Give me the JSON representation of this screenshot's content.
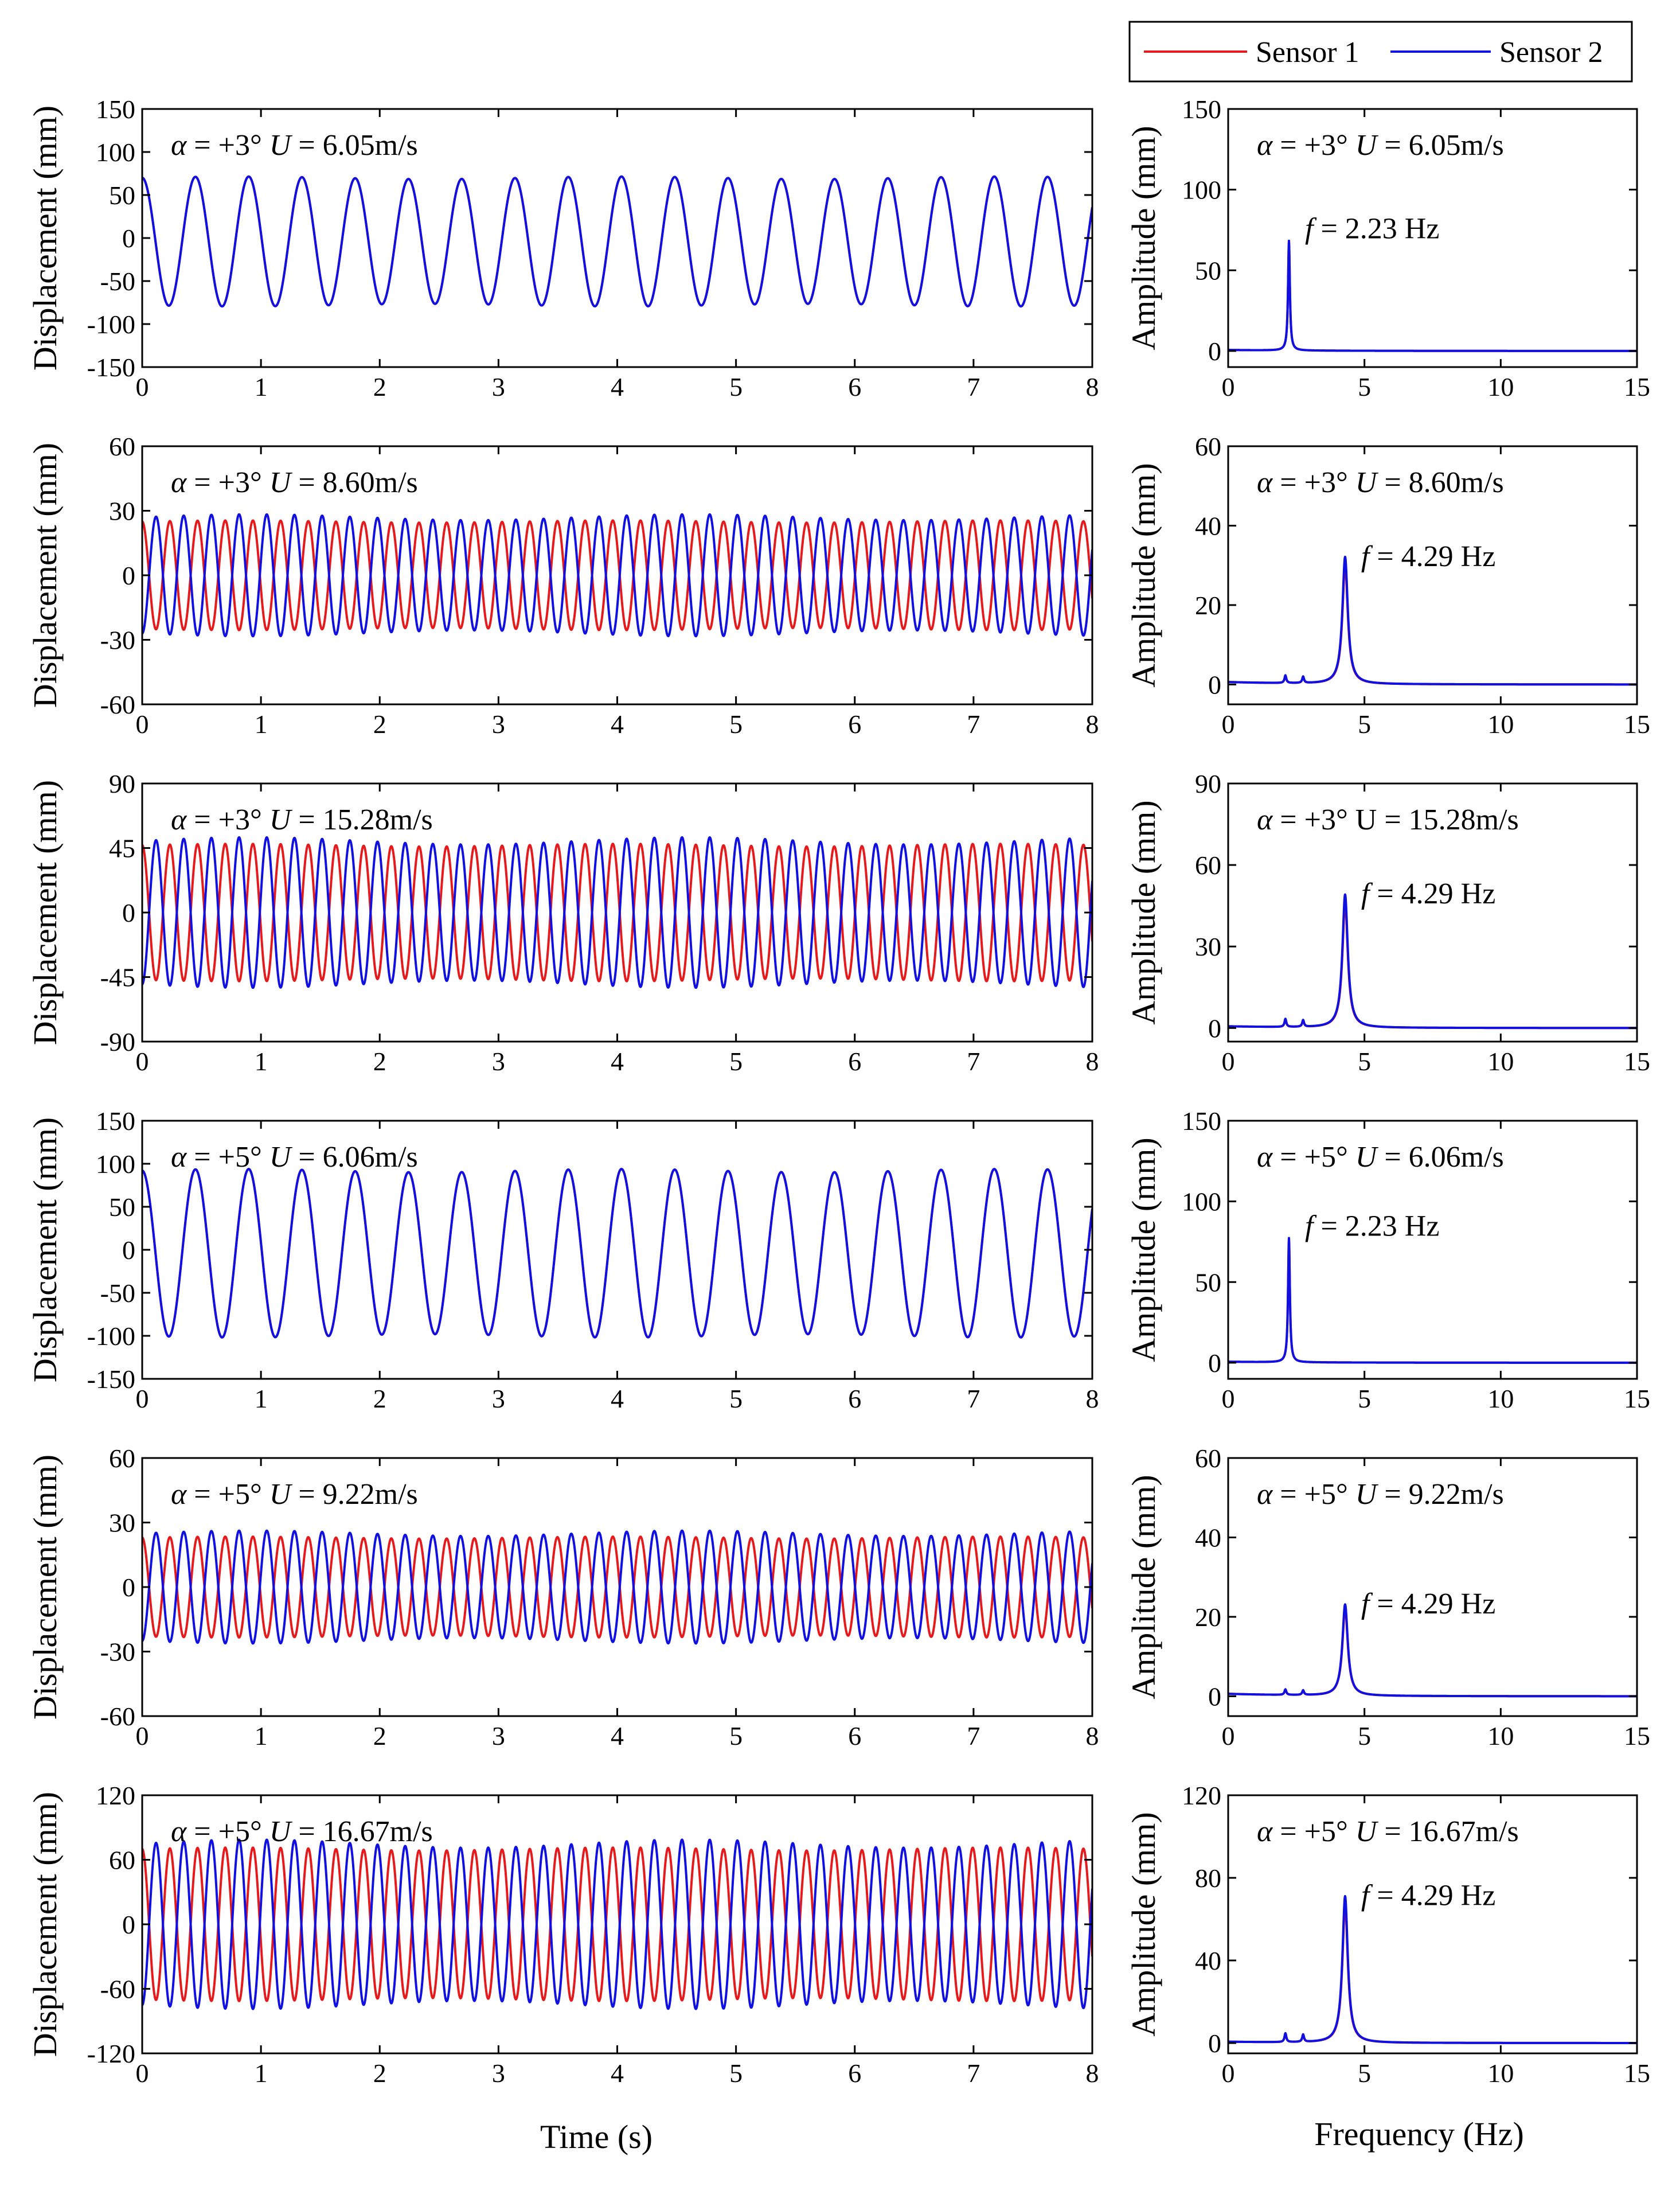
{
  "figure": {
    "time_xlabel": "Time (s)",
    "freq_xlabel": "Frequency (Hz)",
    "time_ylabel": "Displacement (mm)",
    "freq_ylabel": "Amplitude (mm)"
  },
  "legend": {
    "items": [
      {
        "label": "Sensor 1",
        "color": "#e41a1c"
      },
      {
        "label": "Sensor 2",
        "color": "#1010e0"
      }
    ]
  },
  "chart_data": [
    {
      "type": "line",
      "panel": "time",
      "alpha_label": "α = +3°",
      "speed_label": "U = 6.05m/s",
      "xlim": [
        0,
        8
      ],
      "ylim": [
        -150,
        150
      ],
      "xticks": [
        0,
        1,
        2,
        3,
        4,
        5,
        6,
        7,
        8
      ],
      "yticks": [
        -150,
        -100,
        -50,
        0,
        50,
        100,
        150
      ],
      "series": [
        {
          "name": "Sensor 1",
          "amplitude": 74,
          "offset": -4,
          "frequency": 2.23,
          "phase": 0.0
        },
        {
          "name": "Sensor 2",
          "amplitude": 74,
          "offset": -4,
          "frequency": 2.23,
          "phase": 0.0
        }
      ]
    },
    {
      "type": "line",
      "panel": "freq",
      "alpha_label": "α = +3°",
      "speed_label": "U = 6.05m/s",
      "peak_label": "f = 2.23 Hz",
      "peak_freq": 2.23,
      "peak_amplitude": 68,
      "xlim": [
        0,
        15
      ],
      "ylim": [
        -10,
        150
      ],
      "xticks": [
        0,
        5,
        10,
        15
      ],
      "yticks": [
        0,
        50,
        100,
        150
      ],
      "series": [
        {
          "name": "Sensor 1",
          "peak": 68,
          "width": 0.04
        },
        {
          "name": "Sensor 2",
          "peak": 68,
          "width": 0.04
        }
      ]
    },
    {
      "type": "line",
      "panel": "time",
      "alpha_label": "α = +3°",
      "speed_label": "U = 8.60m/s",
      "xlim": [
        0,
        8
      ],
      "ylim": [
        -60,
        60
      ],
      "xticks": [
        0,
        1,
        2,
        3,
        4,
        5,
        6,
        7,
        8
      ],
      "yticks": [
        -60,
        -30,
        0,
        30,
        60
      ],
      "series": [
        {
          "name": "Sensor 1",
          "amplitude": 25,
          "offset": 0,
          "frequency": 4.29,
          "phase": 0.0
        },
        {
          "name": "Sensor 2",
          "amplitude": 27,
          "offset": 0,
          "frequency": 4.29,
          "phase": 3.14
        }
      ]
    },
    {
      "type": "line",
      "panel": "freq",
      "alpha_label": "α = +3°",
      "speed_label": "U = 8.60m/s",
      "peak_label": "f = 4.29 Hz",
      "peak_freq": 4.29,
      "peak_amplitude": 32,
      "xlim": [
        0,
        15
      ],
      "ylim": [
        -5,
        60
      ],
      "xticks": [
        0,
        5,
        10,
        15
      ],
      "yticks": [
        0,
        20,
        40,
        60
      ],
      "series": [
        {
          "name": "Sensor 1",
          "peak": 30,
          "width": 0.12
        },
        {
          "name": "Sensor 2",
          "peak": 32,
          "width": 0.12
        }
      ]
    },
    {
      "type": "line",
      "panel": "time",
      "alpha_label": "α = +3°",
      "speed_label": "U = 15.28m/s",
      "xlim": [
        0,
        8
      ],
      "ylim": [
        -90,
        90
      ],
      "xticks": [
        0,
        1,
        2,
        3,
        4,
        5,
        6,
        7,
        8
      ],
      "yticks": [
        -90,
        -45,
        0,
        45,
        90
      ],
      "series": [
        {
          "name": "Sensor 1",
          "amplitude": 47,
          "offset": 0,
          "frequency": 4.29,
          "phase": 0.0
        },
        {
          "name": "Sensor 2",
          "amplitude": 50,
          "offset": 0,
          "frequency": 4.29,
          "phase": 3.14
        }
      ]
    },
    {
      "type": "line",
      "panel": "freq",
      "alpha_label": "α = +3°",
      "speed_label": "U = 15.28m/s",
      "peak_label": "f = 4.29 Hz",
      "peak_freq": 4.29,
      "peak_amplitude": 49,
      "xlim": [
        0,
        15
      ],
      "ylim": [
        -5,
        90
      ],
      "xticks": [
        0,
        5,
        10,
        15
      ],
      "yticks": [
        0,
        30,
        60,
        90
      ],
      "series": [
        {
          "name": "Sensor 1",
          "peak": 46,
          "width": 0.12
        },
        {
          "name": "Sensor 2",
          "peak": 49,
          "width": 0.12
        }
      ]
    },
    {
      "type": "line",
      "panel": "time",
      "alpha_label": "α = +5°",
      "speed_label": "U = 6.06m/s",
      "xlim": [
        0,
        8
      ],
      "ylim": [
        -150,
        150
      ],
      "xticks": [
        0,
        1,
        2,
        3,
        4,
        5,
        6,
        7,
        8
      ],
      "yticks": [
        -150,
        -100,
        -50,
        0,
        50,
        100,
        150
      ],
      "series": [
        {
          "name": "Sensor 1",
          "amplitude": 96,
          "offset": -4,
          "frequency": 2.23,
          "phase": 0.0
        },
        {
          "name": "Sensor 2",
          "amplitude": 96,
          "offset": -4,
          "frequency": 2.23,
          "phase": 0.0
        }
      ]
    },
    {
      "type": "line",
      "panel": "freq",
      "alpha_label": "α = +5°",
      "speed_label": "U = 6.06m/s",
      "peak_label": "f = 2.23 Hz",
      "peak_freq": 2.23,
      "peak_amplitude": 77,
      "xlim": [
        0,
        15
      ],
      "ylim": [
        -10,
        150
      ],
      "xticks": [
        0,
        5,
        10,
        15
      ],
      "yticks": [
        0,
        50,
        100,
        150
      ],
      "series": [
        {
          "name": "Sensor 1",
          "peak": 77,
          "width": 0.04
        },
        {
          "name": "Sensor 2",
          "peak": 77,
          "width": 0.04
        }
      ]
    },
    {
      "type": "line",
      "panel": "time",
      "alpha_label": "α = +5°",
      "speed_label": "U = 9.22m/s",
      "xlim": [
        0,
        8
      ],
      "ylim": [
        -60,
        60
      ],
      "xticks": [
        0,
        1,
        2,
        3,
        4,
        5,
        6,
        7,
        8
      ],
      "yticks": [
        -60,
        -30,
        0,
        30,
        60
      ],
      "series": [
        {
          "name": "Sensor 1",
          "amplitude": 23,
          "offset": 0,
          "frequency": 4.29,
          "phase": 0.0
        },
        {
          "name": "Sensor 2",
          "amplitude": 25,
          "offset": 0,
          "frequency": 4.29,
          "phase": 3.14
        }
      ]
    },
    {
      "type": "line",
      "panel": "freq",
      "alpha_label": "α = +5°",
      "speed_label": "U = 9.22m/s",
      "peak_label": "f = 4.29 Hz",
      "peak_freq": 4.29,
      "peak_amplitude": 23,
      "xlim": [
        0,
        15
      ],
      "ylim": [
        -5,
        60
      ],
      "xticks": [
        0,
        5,
        10,
        15
      ],
      "yticks": [
        0,
        20,
        40,
        60
      ],
      "series": [
        {
          "name": "Sensor 1",
          "peak": 22,
          "width": 0.12
        },
        {
          "name": "Sensor 2",
          "peak": 23,
          "width": 0.12
        }
      ]
    },
    {
      "type": "line",
      "panel": "time",
      "alpha_label": "α = +5°",
      "speed_label": "U = 16.67m/s",
      "xlim": [
        0,
        8
      ],
      "ylim": [
        -120,
        120
      ],
      "xticks": [
        0,
        1,
        2,
        3,
        4,
        5,
        6,
        7,
        8
      ],
      "yticks": [
        -120,
        -60,
        0,
        60,
        120
      ],
      "series": [
        {
          "name": "Sensor 1",
          "amplitude": 70,
          "offset": 0,
          "frequency": 4.29,
          "phase": 0.0
        },
        {
          "name": "Sensor 2",
          "amplitude": 75,
          "offset": 0,
          "frequency": 4.29,
          "phase": 3.14
        }
      ]
    },
    {
      "type": "line",
      "panel": "freq",
      "alpha_label": "α = +5°",
      "speed_label": "U = 16.67m/s",
      "peak_label": "f = 4.29 Hz",
      "peak_freq": 4.29,
      "peak_amplitude": 71,
      "xlim": [
        0,
        15
      ],
      "ylim": [
        -5,
        120
      ],
      "xticks": [
        0,
        5,
        10,
        15
      ],
      "yticks": [
        0,
        40,
        80,
        120
      ],
      "series": [
        {
          "name": "Sensor 1",
          "peak": 67,
          "width": 0.12
        },
        {
          "name": "Sensor 2",
          "peak": 71,
          "width": 0.12
        }
      ]
    }
  ]
}
